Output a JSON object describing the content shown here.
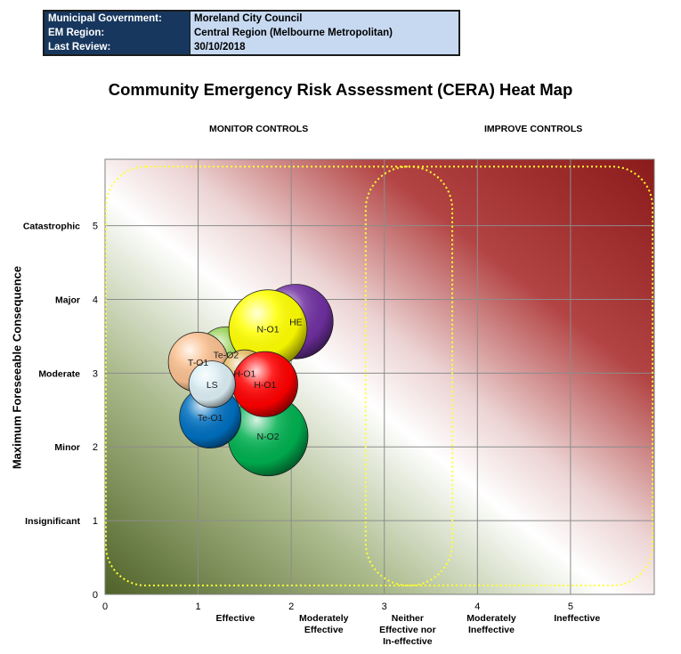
{
  "info": {
    "rows": [
      {
        "label": "Municipal Government:",
        "value": "Moreland City Council"
      },
      {
        "label": "EM Region:",
        "value": "Central Region (Melbourne Metropolitan)"
      },
      {
        "label": "Last Review:",
        "value": "30/10/2018"
      }
    ]
  },
  "colors": {
    "info_label_bg": "#17375e",
    "info_value_bg": "#c6d9f1",
    "zone_outline": "#ffff33",
    "low_risk": "#4f6228",
    "high_risk": "#8b1a1a"
  },
  "chart_data": {
    "type": "bubble",
    "title": "Community Emergency Risk Assessment (CERA) Heat Map",
    "zone_labels": [
      "MONITOR CONTROLS",
      "IMPROVE CONTROLS"
    ],
    "ylabel": "Maximum Foreseeable Consequence",
    "xlim": [
      0,
      5.9
    ],
    "ylim": [
      0,
      5.9
    ],
    "grid": true,
    "x_ticks": [
      0,
      1,
      2,
      3,
      4,
      5
    ],
    "y_ticks": [
      0,
      1,
      2,
      3,
      4,
      5
    ],
    "x_categories": [
      {
        "at": 1.4,
        "label": "Effective"
      },
      {
        "at": 2.35,
        "label": "Moderately Effective"
      },
      {
        "at": 3.25,
        "label": "Neither Effective nor In-effective"
      },
      {
        "at": 4.15,
        "label": "Moderately Ineffective"
      },
      {
        "at": 5.07,
        "label": "Ineffective"
      }
    ],
    "y_categories": [
      {
        "at": 5,
        "label": "Catastrophic"
      },
      {
        "at": 4,
        "label": "Major"
      },
      {
        "at": 3,
        "label": "Moderate"
      },
      {
        "at": 2,
        "label": "Minor"
      },
      {
        "at": 1,
        "label": "Insignificant"
      }
    ],
    "bubbles": [
      {
        "label": "HE",
        "x": 2.05,
        "y": 3.7,
        "r": 0.4,
        "color": "#7030a0"
      },
      {
        "label": "Te-O2",
        "x": 1.3,
        "y": 3.25,
        "r": 0.3,
        "color": "#92d050"
      },
      {
        "label": "T-O1",
        "x": 1.0,
        "y": 3.15,
        "r": 0.32,
        "color": "#fac090"
      },
      {
        "label": "N-O1",
        "x": 1.75,
        "y": 3.6,
        "r": 0.42,
        "color": "#ffff00"
      },
      {
        "label": "N-O2",
        "x": 1.75,
        "y": 2.15,
        "r": 0.43,
        "color": "#00b050"
      },
      {
        "label": "Te-O1",
        "x": 1.13,
        "y": 2.4,
        "r": 0.33,
        "color": "#0070c0"
      },
      {
        "label": "H-O1",
        "x": 1.5,
        "y": 3.0,
        "r": 0.25,
        "color": "#e3b85f"
      },
      {
        "label": "H-O1",
        "x": 1.72,
        "y": 2.85,
        "r": 0.35,
        "color": "#ff0000"
      },
      {
        "label": "LS",
        "x": 1.15,
        "y": 2.85,
        "r": 0.25,
        "color": "#dbeef4"
      }
    ]
  }
}
